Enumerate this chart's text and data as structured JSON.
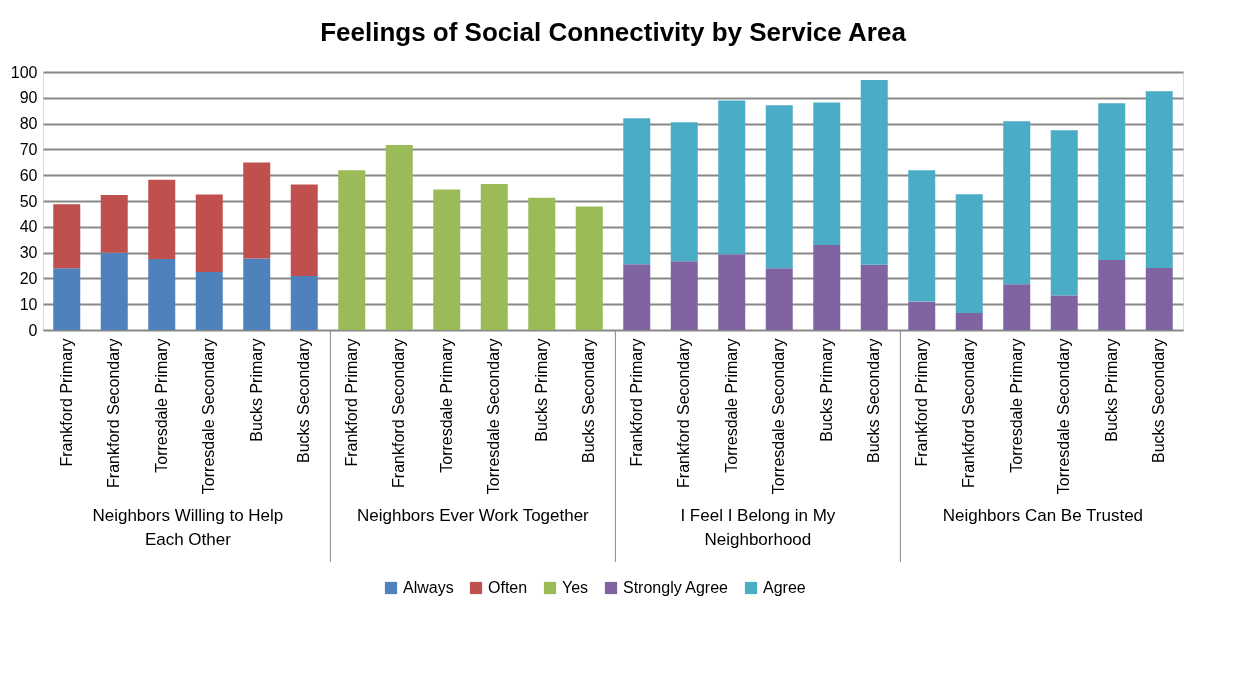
{
  "chart_data": {
    "type": "bar",
    "title": "Feelings of Social Connectivity by Service Area",
    "stacked": true,
    "categories": [
      "Frankford Primary",
      "Frankford Secondary",
      "Torresdale Primary",
      "Torresdale Secondary",
      "Bucks Primary",
      "Bucks Secondary",
      "Frankford Primary",
      "Frankford Secondary",
      "Torresdale Primary",
      "Torresdale Secondary",
      "Bucks Primary",
      "Bucks Secondary",
      "Frankford Primary",
      "Frankford Secondary",
      "Torresdale Primary",
      "Torresdale Secondary",
      "Bucks Primary",
      "Bucks Secondary",
      "Frankford Primary",
      "Frankford Secondary",
      "Torresdale Primary",
      "Torresdale Secondary",
      "Bucks Primary",
      "Bucks Secondary"
    ],
    "series": [
      {
        "name": "Always",
        "color": "#4f81bd",
        "values": [
          23.9,
          29.9,
          27.5,
          22.5,
          27.7,
          20.9,
          null,
          null,
          null,
          null,
          null,
          null,
          null,
          null,
          null,
          null,
          null,
          null,
          null,
          null,
          null,
          null,
          null,
          null
        ]
      },
      {
        "name": "Often",
        "color": "#c0504d",
        "values": [
          24.8,
          22.4,
          30.7,
          30,
          37.2,
          35.5,
          null,
          null,
          null,
          null,
          null,
          null,
          null,
          null,
          null,
          null,
          null,
          null,
          null,
          null,
          null,
          null,
          null,
          null
        ]
      },
      {
        "name": "Yes",
        "color": "#9bbb59",
        "values": [
          null,
          null,
          null,
          null,
          null,
          null,
          61.9,
          71.7,
          54.5,
          56.6,
          51.3,
          47.9,
          null,
          null,
          null,
          null,
          null,
          null,
          null,
          null,
          null,
          null,
          null,
          null
        ]
      },
      {
        "name": "Strongly Agree",
        "color": "#8064a2",
        "values": [
          null,
          null,
          null,
          null,
          null,
          null,
          null,
          null,
          null,
          null,
          null,
          null,
          25.5,
          26.6,
          29.4,
          23.9,
          32.9,
          25.3,
          11,
          6.6,
          17.7,
          13.4,
          27.1,
          24
        ]
      },
      {
        "name": "Agree",
        "color": "#4bacc6",
        "values": [
          null,
          null,
          null,
          null,
          null,
          null,
          null,
          null,
          null,
          null,
          null,
          null,
          56.6,
          53.9,
          59.6,
          63.2,
          55.3,
          71.6,
          50.9,
          46,
          63.2,
          64,
          60.8,
          68.5
        ]
      }
    ],
    "annotations": [
      "Neighbors Willing to Help Each Other",
      "Neighbors Ever Work Together",
      "I Feel I Belong in My Neighborhood",
      "Neighbors Can Be Trusted"
    ],
    "ylim": [
      0,
      100
    ],
    "yticks": [
      0,
      10,
      20,
      30,
      40,
      50,
      60,
      70,
      80,
      90,
      100
    ],
    "grid": "y",
    "legend": "bottom"
  }
}
